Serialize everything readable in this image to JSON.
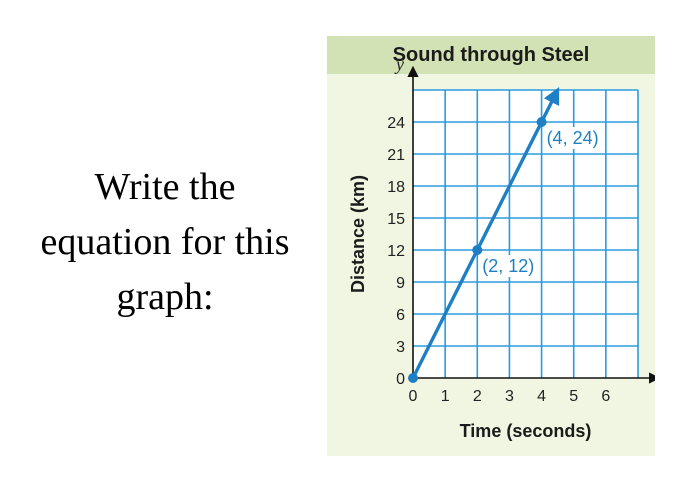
{
  "prompt": {
    "line1": "Write the",
    "line2": "equation for this",
    "line3": "graph:"
  },
  "colors": {
    "card_background": "#f1f6e2",
    "title_bar": "#d3e2b4",
    "grid": "#2b9be0",
    "line": "#1f7fc4"
  },
  "chart_data": {
    "type": "line",
    "title": "Sound through Steel",
    "xlabel": "Time (seconds)",
    "ylabel": "Distance (km)",
    "x_axis_var": "x",
    "y_axis_var": "y",
    "xlim": [
      0,
      7
    ],
    "ylim": [
      0,
      27
    ],
    "xticks": [
      "0",
      "1",
      "2",
      "3",
      "4",
      "5",
      "6"
    ],
    "yticks": [
      "0",
      "3",
      "6",
      "9",
      "12",
      "15",
      "18",
      "21",
      "24"
    ],
    "grid": true,
    "series": [
      {
        "values": [
          [
            0,
            0
          ],
          [
            4.5,
            27
          ]
        ],
        "arrow_end": true
      }
    ],
    "points": [
      {
        "x": 0,
        "y": 0,
        "label": ""
      },
      {
        "x": 2,
        "y": 12,
        "label": "(2, 12)"
      },
      {
        "x": 4,
        "y": 24,
        "label": "(4, 24)"
      }
    ]
  }
}
